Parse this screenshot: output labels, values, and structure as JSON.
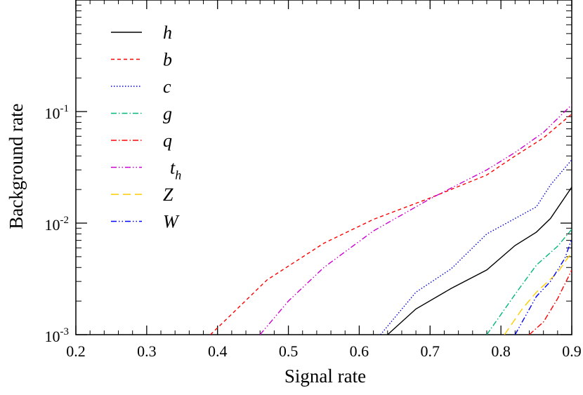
{
  "chart_data": {
    "type": "line",
    "xlabel": "Signal rate",
    "ylabel": "Background rate",
    "xlim": [
      0.2,
      0.9
    ],
    "ylim": [
      0.001,
      1
    ],
    "yscale": "log",
    "x_ticks": [
      "0.2",
      "0.3",
      "0.4",
      "0.5",
      "0.6",
      "0.7",
      "0.8",
      "0.9"
    ],
    "y_ticks": [
      {
        "base": "10",
        "exp": "-3",
        "value": 0.001
      },
      {
        "base": "10",
        "exp": "-2",
        "value": 0.01
      },
      {
        "base": "10",
        "exp": "-1",
        "value": 0.1
      }
    ],
    "legend_position": "top-left",
    "grid": false,
    "series": [
      {
        "name": "h",
        "color": "#000000",
        "dash": "solid",
        "points": [
          [
            0.64,
            0.001
          ],
          [
            0.68,
            0.0017
          ],
          [
            0.73,
            0.0026
          ],
          [
            0.78,
            0.0038
          ],
          [
            0.82,
            0.0063
          ],
          [
            0.85,
            0.0083
          ],
          [
            0.87,
            0.011
          ],
          [
            0.9,
            0.021
          ]
        ]
      },
      {
        "name": "b",
        "color": "#ff0000",
        "dash": "dashed",
        "points": [
          [
            0.39,
            0.001
          ],
          [
            0.47,
            0.0031
          ],
          [
            0.55,
            0.0066
          ],
          [
            0.62,
            0.0108
          ],
          [
            0.7,
            0.0168
          ],
          [
            0.78,
            0.027
          ],
          [
            0.82,
            0.04
          ],
          [
            0.86,
            0.058
          ],
          [
            0.9,
            0.095
          ]
        ]
      },
      {
        "name": "c",
        "color": "#0000cc",
        "dash": "dotted",
        "points": [
          [
            0.63,
            0.001
          ],
          [
            0.68,
            0.0024
          ],
          [
            0.73,
            0.0039
          ],
          [
            0.78,
            0.008
          ],
          [
            0.82,
            0.011
          ],
          [
            0.85,
            0.014
          ],
          [
            0.87,
            0.022
          ],
          [
            0.9,
            0.037
          ]
        ]
      },
      {
        "name": "g",
        "color": "#00b878",
        "dash": "dashdot",
        "points": [
          [
            0.78,
            0.001
          ],
          [
            0.82,
            0.0023
          ],
          [
            0.85,
            0.0042
          ],
          [
            0.88,
            0.0062
          ],
          [
            0.9,
            0.0088
          ]
        ]
      },
      {
        "name": "q",
        "color": "#ff0000",
        "dash": "dashdot",
        "points": [
          [
            0.84,
            0.001
          ],
          [
            0.86,
            0.0013
          ],
          [
            0.88,
            0.0021
          ],
          [
            0.9,
            0.0038
          ]
        ]
      },
      {
        "name": "t",
        "subscript": "h",
        "color": "#cc00cc",
        "dash": "dashdotdot",
        "points": [
          [
            0.46,
            0.001
          ],
          [
            0.5,
            0.002
          ],
          [
            0.55,
            0.004
          ],
          [
            0.62,
            0.0085
          ],
          [
            0.7,
            0.0165
          ],
          [
            0.78,
            0.03
          ],
          [
            0.82,
            0.043
          ],
          [
            0.86,
            0.065
          ],
          [
            0.9,
            0.115
          ]
        ]
      },
      {
        "name": "Z",
        "color": "#ffcc00",
        "dash": "longdash",
        "points": [
          [
            0.805,
            0.001
          ],
          [
            0.83,
            0.0017
          ],
          [
            0.85,
            0.0024
          ],
          [
            0.88,
            0.0036
          ],
          [
            0.9,
            0.0055
          ]
        ]
      },
      {
        "name": "W",
        "color": "#0000ff",
        "dash": "dashdotdot",
        "points": [
          [
            0.82,
            0.001
          ],
          [
            0.85,
            0.0022
          ],
          [
            0.87,
            0.003
          ],
          [
            0.89,
            0.0048
          ],
          [
            0.9,
            0.0072
          ]
        ]
      }
    ]
  }
}
